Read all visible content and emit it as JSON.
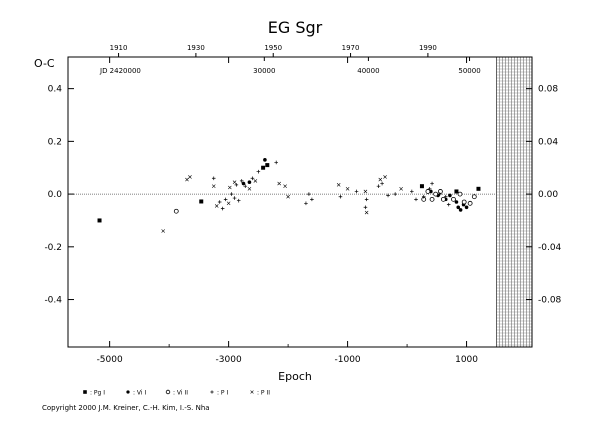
{
  "chart_data": {
    "type": "scatter",
    "title": "EG Sgr",
    "ylabel": "O-C",
    "xlabel": "Epoch",
    "xlim": [
      -5700,
      2100
    ],
    "ylim": [
      -0.58,
      0.52
    ],
    "right_ylim": [
      -0.116,
      0.104
    ],
    "top_axis_label": "JD 2420000",
    "x_ticks": [
      {
        "value": -5000,
        "label": "-5000"
      },
      {
        "value": -3000,
        "label": "-3000"
      },
      {
        "value": -1000,
        "label": "-1000"
      },
      {
        "value": 1000,
        "label": "1000"
      }
    ],
    "y_ticks": [
      {
        "value": 0.4,
        "label": "0.4"
      },
      {
        "value": 0.2,
        "label": "0.2"
      },
      {
        "value": 0.0,
        "label": "0.0"
      },
      {
        "value": -0.2,
        "label": "-0.2"
      },
      {
        "value": -0.4,
        "label": "-0.4"
      }
    ],
    "right_y_ticks": [
      {
        "value": 0.08,
        "label": "0.08"
      },
      {
        "value": 0.04,
        "label": "0.04"
      },
      {
        "value": 0.0,
        "label": "0.00"
      },
      {
        "value": -0.04,
        "label": "-0.04"
      },
      {
        "value": -0.08,
        "label": "-0.08"
      }
    ],
    "top_year_ticks": [
      {
        "epoch": -4850,
        "label": "1910"
      },
      {
        "epoch": -3550,
        "label": "1930"
      },
      {
        "epoch": -2250,
        "label": "1950"
      },
      {
        "epoch": -950,
        "label": "1970"
      },
      {
        "epoch": 350,
        "label": "1990"
      }
    ],
    "top_jd_ticks": [
      {
        "epoch": -2400,
        "label": "30000"
      },
      {
        "epoch": -650,
        "label": "40000"
      },
      {
        "epoch": 1050,
        "label": "50000"
      }
    ],
    "future_region": {
      "from_epoch": 1500,
      "to_epoch": 2100
    },
    "legend": [
      {
        "symbol": "filled-square",
        "label": ": Pg I"
      },
      {
        "symbol": "filled-circle",
        "label": ": Vi I"
      },
      {
        "symbol": "open-circle",
        "label": ": Vi II"
      },
      {
        "symbol": "plus",
        "label": ": P I"
      },
      {
        "symbol": "star",
        "label": ": P II"
      }
    ],
    "series": [
      {
        "name": ": Pg I",
        "symbol": "filled-square",
        "points": [
          [
            -5170,
            -0.1
          ],
          [
            -3460,
            -0.028
          ],
          [
            -2420,
            0.1
          ],
          [
            -2350,
            0.11
          ],
          [
            250,
            0.03
          ],
          [
            830,
            0.01
          ],
          [
            1200,
            0.02
          ]
        ]
      },
      {
        "name": ": Vi I",
        "symbol": "filled-circle",
        "points": [
          [
            -2750,
            0.04
          ],
          [
            -2650,
            0.045
          ],
          [
            -2390,
            0.13
          ],
          [
            400,
            0.01
          ],
          [
            520,
            -0.005
          ],
          [
            650,
            -0.02
          ],
          [
            720,
            -0.005
          ],
          [
            830,
            -0.03
          ],
          [
            860,
            -0.05
          ],
          [
            900,
            -0.06
          ],
          [
            950,
            -0.04
          ],
          [
            1000,
            -0.05
          ]
        ]
      },
      {
        "name": ": Vi II",
        "symbol": "open-circle",
        "points": [
          [
            -3880,
            -0.065
          ],
          [
            280,
            -0.02
          ],
          [
            350,
            0.01
          ],
          [
            420,
            -0.02
          ],
          [
            480,
            0.0
          ],
          [
            560,
            0.01
          ],
          [
            610,
            -0.02
          ],
          [
            780,
            -0.02
          ],
          [
            890,
            0.0
          ],
          [
            960,
            -0.03
          ],
          [
            1060,
            -0.035
          ],
          [
            1130,
            -0.01
          ]
        ]
      },
      {
        "name": ": P I",
        "symbol": "plus",
        "points": [
          [
            -3250,
            0.06
          ],
          [
            -3150,
            -0.03
          ],
          [
            -3100,
            -0.055
          ],
          [
            -3050,
            -0.02
          ],
          [
            -2950,
            0.0
          ],
          [
            -2900,
            -0.015
          ],
          [
            -2870,
            0.035
          ],
          [
            -2830,
            -0.025
          ],
          [
            -2780,
            0.05
          ],
          [
            -2720,
            0.03
          ],
          [
            -2600,
            0.06
          ],
          [
            -2500,
            0.085
          ],
          [
            -2200,
            0.12
          ],
          [
            -1700,
            -0.035
          ],
          [
            -1650,
            0.0
          ],
          [
            -1600,
            -0.02
          ],
          [
            -1120,
            -0.01
          ],
          [
            -850,
            0.01
          ],
          [
            -700,
            -0.05
          ],
          [
            -680,
            -0.02
          ],
          [
            -480,
            0.03
          ],
          [
            -420,
            0.04
          ],
          [
            -320,
            -0.005
          ],
          [
            -200,
            0.0
          ],
          [
            80,
            0.01
          ],
          [
            150,
            -0.02
          ],
          [
            280,
            -0.01
          ],
          [
            380,
            0.02
          ],
          [
            420,
            0.04
          ],
          [
            550,
            0.0
          ],
          [
            650,
            -0.01
          ],
          [
            700,
            -0.04
          ]
        ]
      },
      {
        "name": ": P II",
        "symbol": "star",
        "points": [
          [
            -4100,
            -0.14
          ],
          [
            -3700,
            0.055
          ],
          [
            -3650,
            0.065
          ],
          [
            -3250,
            0.03
          ],
          [
            -3200,
            -0.045
          ],
          [
            -3000,
            -0.035
          ],
          [
            -2980,
            0.025
          ],
          [
            -2900,
            0.045
          ],
          [
            -2650,
            0.02
          ],
          [
            -2550,
            0.05
          ],
          [
            -2150,
            0.04
          ],
          [
            -2050,
            0.03
          ],
          [
            -2000,
            -0.01
          ],
          [
            -1150,
            0.035
          ],
          [
            -1000,
            0.02
          ],
          [
            -700,
            0.01
          ],
          [
            -680,
            -0.07
          ],
          [
            -450,
            0.055
          ],
          [
            -370,
            0.065
          ],
          [
            -100,
            0.02
          ]
        ]
      }
    ]
  },
  "copyright": "Copyright 2000 J.M. Kreiner, C.-H. Kim, I.-S. Nha"
}
